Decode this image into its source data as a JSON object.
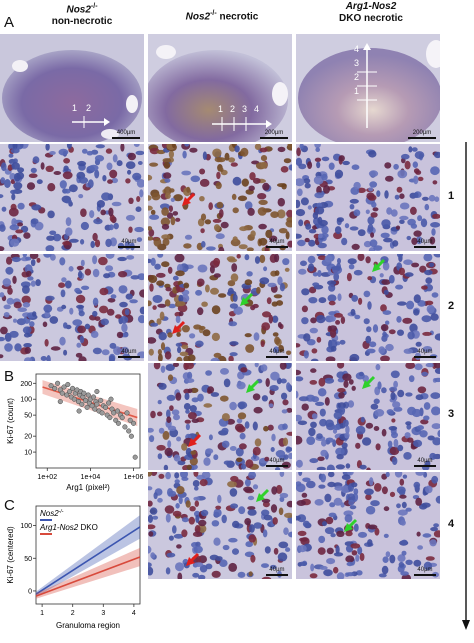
{
  "panels": {
    "A": "A",
    "B": "B",
    "C": "C"
  },
  "columns": [
    {
      "line1": "Nos2",
      "sup": "-/-",
      "line2": "non-necrotic"
    },
    {
      "line1": "Nos2",
      "sup": "-/-",
      "line2": "necrotic"
    },
    {
      "line1": "Arg1-Nos2",
      "sup": "",
      "line2": "DKO necrotic"
    }
  ],
  "overview_scales": [
    "400µm",
    "200µm",
    "200µm"
  ],
  "overview_marks": {
    "col1": [
      "1",
      "2"
    ],
    "col2": [
      "1",
      "2",
      "3",
      "4"
    ],
    "col3": [
      "4",
      "3",
      "2",
      "1"
    ]
  },
  "tile_scale": "40µm",
  "row_numbers": [
    "1",
    "2",
    "3",
    "4"
  ],
  "arrows": {
    "red": "red-arrow",
    "green": "green-arrow"
  },
  "chart_data": [
    {
      "type": "scatter",
      "xlabel": "Arg1 (pixel²)",
      "ylabel": "Ki-67 (count)",
      "x_scale": "log",
      "x_ticks": [
        "1e+02",
        "1e+04",
        "1e+06"
      ],
      "y_scale": "log",
      "y_ticks": [
        "10",
        "20",
        "50",
        "100",
        "200"
      ],
      "xlim": [
        30,
        2000000
      ],
      "ylim": [
        5,
        300
      ],
      "points": [
        [
          150,
          180
        ],
        [
          220,
          160
        ],
        [
          300,
          200
        ],
        [
          400,
          150
        ],
        [
          500,
          130
        ],
        [
          600,
          170
        ],
        [
          800,
          120
        ],
        [
          900,
          190
        ],
        [
          1100,
          140
        ],
        [
          1300,
          110
        ],
        [
          1500,
          160
        ],
        [
          1800,
          100
        ],
        [
          2000,
          130
        ],
        [
          2400,
          150
        ],
        [
          2800,
          90
        ],
        [
          3200,
          120
        ],
        [
          3600,
          140
        ],
        [
          4000,
          80
        ],
        [
          4500,
          110
        ],
        [
          5000,
          130
        ],
        [
          6000,
          95
        ],
        [
          7000,
          70
        ],
        [
          8000,
          120
        ],
        [
          9000,
          85
        ],
        [
          10000,
          100
        ],
        [
          12000,
          75
        ],
        [
          14000,
          110
        ],
        [
          16000,
          65
        ],
        [
          18000,
          90
        ],
        [
          20000,
          80
        ],
        [
          25000,
          60
        ],
        [
          30000,
          95
        ],
        [
          35000,
          55
        ],
        [
          40000,
          75
        ],
        [
          50000,
          70
        ],
        [
          60000,
          50
        ],
        [
          70000,
          85
        ],
        [
          80000,
          45
        ],
        [
          100000,
          65
        ],
        [
          120000,
          55
        ],
        [
          150000,
          40
        ],
        [
          180000,
          60
        ],
        [
          200000,
          35
        ],
        [
          250000,
          50
        ],
        [
          300000,
          45
        ],
        [
          400000,
          30
        ],
        [
          500000,
          55
        ],
        [
          600000,
          25
        ],
        [
          700000,
          40
        ],
        [
          800000,
          20
        ],
        [
          1000000,
          35
        ],
        [
          1200000,
          8
        ],
        [
          400,
          90
        ],
        [
          3000,
          60
        ],
        [
          20000,
          140
        ],
        [
          90000,
          100
        ]
      ],
      "fit": {
        "x": [
          60,
          1500000
        ],
        "y": [
          170,
          45
        ]
      },
      "fit_color": "#e05a48"
    },
    {
      "type": "line",
      "xlabel": "Granuloma region",
      "ylabel": "Ki-67 (centered)",
      "x_ticks": [
        "1",
        "2",
        "3",
        "4"
      ],
      "y_ticks": [
        "0",
        "50",
        "100"
      ],
      "xlim": [
        0.8,
        4.2
      ],
      "ylim": [
        -20,
        130
      ],
      "series": [
        {
          "name": "Nos2",
          "sup": "-/-",
          "color": "#3b55b0",
          "x": [
            0.8,
            4.2
          ],
          "y": [
            -5,
            98
          ]
        },
        {
          "name": "Arg1-Nos2",
          "suffix": " DKO",
          "color": "#d84a3c",
          "x": [
            0.8,
            4.2
          ],
          "y": [
            -8,
            52
          ]
        }
      ]
    }
  ]
}
